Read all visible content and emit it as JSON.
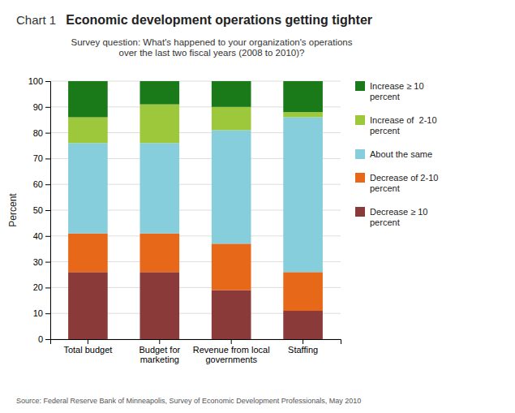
{
  "chart_data": {
    "type": "bar",
    "stacked": true,
    "title": "Economic development operations getting tighter",
    "subtitle": "Survey question: What's happened to your organization's operations\nover the last two fiscal years (2008 to 2010)?",
    "annotations": [
      "Chart 1",
      "Source: Federal Reserve Bank of Minneapolis, Survey of Economic Development Professionals, May 2010"
    ],
    "ylabel": "Percent",
    "categories": [
      "Total budget",
      "Budget for\nmarketing",
      "Revenue from local\ngovernments",
      "Staffing"
    ],
    "series": [
      {
        "name": "Decrease ≥ 10\npercent",
        "values": [
          26,
          26,
          19,
          11
        ],
        "color": "#8B3A3A"
      },
      {
        "name": "Decrease of 2-10\npercent",
        "values": [
          15,
          15,
          18,
          15
        ],
        "color": "#E8681A"
      },
      {
        "name": "About the same",
        "values": [
          35,
          35,
          44,
          60
        ],
        "color": "#87CEDC"
      },
      {
        "name": "Increase of  2-10\npercent",
        "values": [
          10,
          15,
          9,
          2
        ],
        "color": "#9DC83C"
      },
      {
        "name": "Increase ≥ 10\npercent",
        "values": [
          14,
          9,
          10,
          12
        ],
        "color": "#1A7A1A"
      }
    ],
    "ylim": [
      0,
      100
    ],
    "yticks": [
      0,
      10,
      20,
      30,
      40,
      50,
      60,
      70,
      80,
      90,
      100
    ],
    "grid": true,
    "legend": "right"
  }
}
